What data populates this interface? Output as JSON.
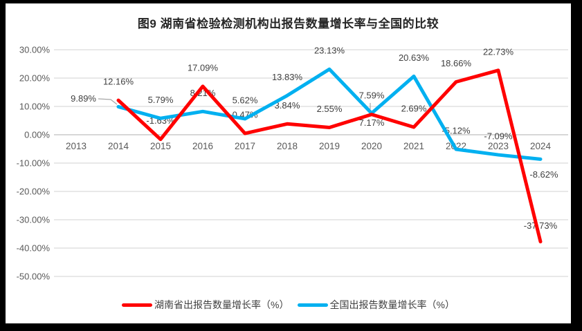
{
  "chart_data": {
    "type": "line",
    "title": "图9 湖南省检验检测机构出报告数量增长率与全国的比较",
    "categories": [
      "2013",
      "2014",
      "2015",
      "2016",
      "2017",
      "2018",
      "2019",
      "2020",
      "2021",
      "2022",
      "2023",
      "2024"
    ],
    "series": [
      {
        "name": "湖南省出报告数量增长率（%）",
        "color": "#FF0000",
        "start_category": "2014",
        "values": [
          12.16,
          -1.63,
          17.09,
          0.47,
          3.84,
          2.55,
          7.17,
          2.69,
          18.66,
          22.73,
          -37.73
        ]
      },
      {
        "name": "全国出报告数量增长率（%）",
        "color": "#00B0F0",
        "start_category": "2014",
        "values": [
          9.89,
          5.79,
          8.21,
          5.62,
          13.83,
          23.13,
          7.59,
          20.63,
          -5.12,
          -7.09,
          -8.62
        ]
      }
    ],
    "ylim": [
      -50,
      30
    ],
    "ytick_step": 10,
    "ytick_labels": [
      "30.00%",
      "20.00%",
      "10.00%",
      "0.00%",
      "-10.00%",
      "-20.00%",
      "-30.00%",
      "-40.00%",
      "-50.00%"
    ],
    "xlabel": "",
    "ylabel": "",
    "grid": true,
    "data_labels": true,
    "legend_position": "bottom"
  },
  "legend": {
    "items": [
      {
        "label": "湖南省出报告数量增长率（%）",
        "color": "#FF0000"
      },
      {
        "label": "全国出报告数量增长率（%）",
        "color": "#00B0F0"
      }
    ]
  },
  "colors": {
    "frame": "#000000",
    "chart_background": "#FFFFFF",
    "grid_line": "#D9D9D9",
    "zero_axis_line": "#BFBFBF",
    "axis_text": "#595959",
    "data_label_text": "#404040",
    "title_text": "#262626",
    "leader_line": "#A6A6A6",
    "hunan_red": "#FF0000",
    "national_blue": "#00B0F0"
  }
}
